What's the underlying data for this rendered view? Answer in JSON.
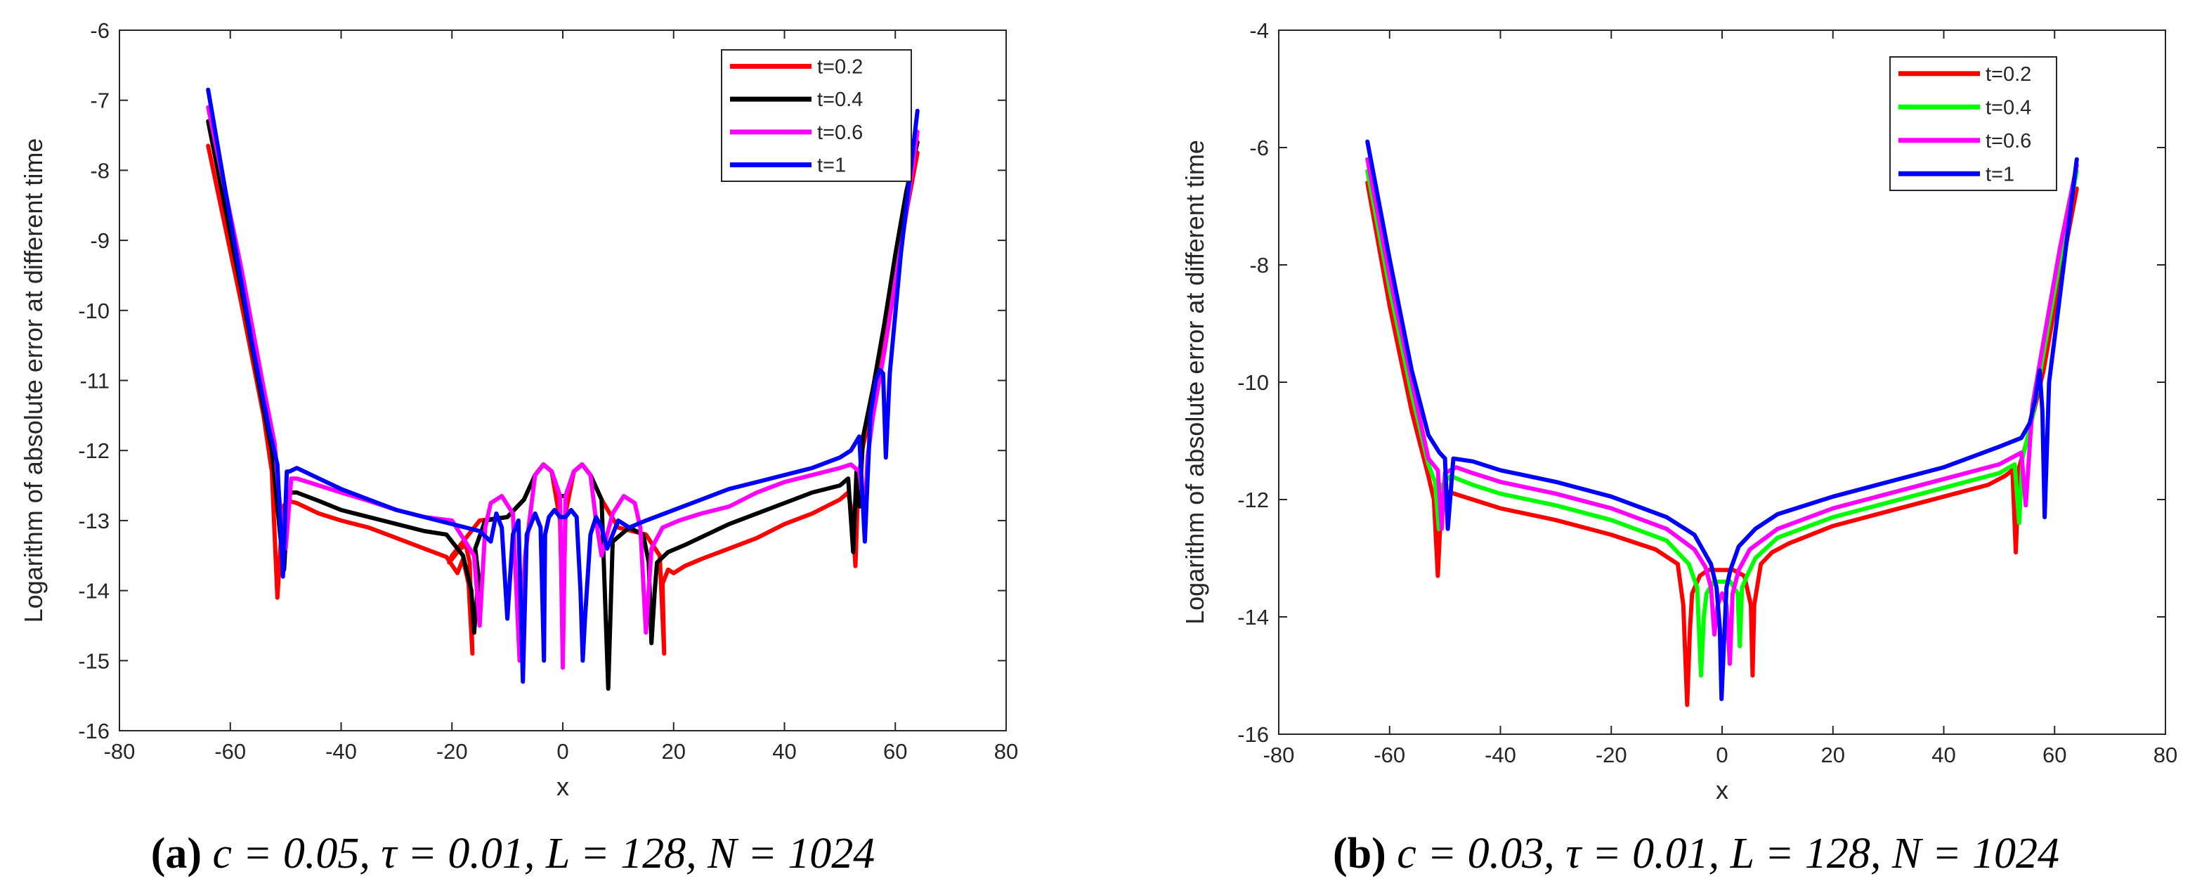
{
  "chart_data": [
    {
      "type": "line",
      "panel": "a",
      "caption": {
        "tag": "(a)",
        "text": "c = 0.05, τ = 0.01, L = 128, N = 1024"
      },
      "xlabel": "x",
      "ylabel": "Logarithm of absolute error at different time",
      "xlim": [
        -80,
        80
      ],
      "ylim": [
        -16,
        -6
      ],
      "xticks": [
        -80,
        -60,
        -40,
        -20,
        0,
        20,
        40,
        60,
        80
      ],
      "yticks": [
        -16,
        -15,
        -14,
        -13,
        -12,
        -11,
        -10,
        -9,
        -8,
        -7,
        -6
      ],
      "legend_position": "top-right",
      "series": [
        {
          "name": "t=0.2",
          "color": "#ff0000",
          "x": [
            -64,
            -58,
            -54,
            -52.5,
            -51.5,
            -50.5,
            -49.5,
            -48,
            -44,
            -40,
            -35,
            -30,
            -25,
            -21,
            -19,
            -18,
            -17,
            -16.3,
            -16.8,
            -17.5,
            -18.5,
            -19.5,
            -20.5,
            -20,
            -15,
            -10,
            -7,
            -5,
            -3.5,
            -2,
            -0.5,
            0,
            0.5,
            2,
            3.5,
            5,
            7,
            10,
            15,
            17.5,
            18.3,
            18,
            19,
            20,
            22,
            25,
            30,
            35,
            40,
            45,
            50,
            51.5,
            52.2,
            52.8,
            53.3,
            54,
            56,
            58,
            60,
            62,
            64
          ],
          "y": [
            -7.65,
            -9.9,
            -11.5,
            -12.3,
            -14.1,
            -12.8,
            -12.72,
            -12.75,
            -12.9,
            -13.0,
            -13.1,
            -13.25,
            -13.4,
            -13.52,
            -13.75,
            -13.55,
            -13.9,
            -14.9,
            -13.6,
            -13.35,
            -13.4,
            -13.5,
            -13.6,
            -13.5,
            -13.0,
            -12.95,
            -12.7,
            -12.35,
            -12.2,
            -12.3,
            -13.0,
            -14.6,
            -12.9,
            -12.3,
            -12.2,
            -12.35,
            -12.7,
            -13.1,
            -13.2,
            -13.5,
            -14.9,
            -13.9,
            -13.7,
            -13.75,
            -13.65,
            -13.55,
            -13.4,
            -13.25,
            -13.05,
            -12.9,
            -12.7,
            -12.6,
            -12.9,
            -13.65,
            -12.5,
            -12.0,
            -11.3,
            -10.5,
            -9.6,
            -8.6,
            -7.75
          ]
        },
        {
          "name": "t=0.4",
          "color": "#000000",
          "x": [
            -64,
            -58,
            -54,
            -52.5,
            -51,
            -50.3,
            -49.5,
            -48,
            -44,
            -40,
            -35,
            -30,
            -25,
            -21,
            -18,
            -16.5,
            -16,
            -15.2,
            -15.8,
            -14,
            -10,
            -7,
            -5,
            -3.5,
            -2,
            -0.5,
            0.5,
            2,
            3.5,
            5,
            7,
            7.8,
            8.2,
            9,
            12,
            14.5,
            15.5,
            16,
            16.6,
            17,
            19,
            22,
            26,
            30,
            35,
            40,
            45,
            50,
            51.5,
            52.4,
            53,
            53.5,
            54.2,
            56,
            58,
            60,
            62,
            64
          ],
          "y": [
            -7.3,
            -9.7,
            -11.4,
            -12.0,
            -13.2,
            -13.7,
            -12.6,
            -12.6,
            -12.72,
            -12.85,
            -12.95,
            -13.05,
            -13.15,
            -13.2,
            -13.5,
            -14.0,
            -14.6,
            -13.8,
            -13.4,
            -13.0,
            -12.95,
            -12.7,
            -12.35,
            -12.2,
            -12.3,
            -12.65,
            -12.65,
            -12.3,
            -12.2,
            -12.35,
            -12.7,
            -14.5,
            -15.4,
            -13.3,
            -13.1,
            -13.2,
            -13.6,
            -14.75,
            -14.0,
            -13.6,
            -13.45,
            -13.35,
            -13.2,
            -13.05,
            -12.9,
            -12.75,
            -12.6,
            -12.5,
            -12.4,
            -13.45,
            -12.3,
            -12.8,
            -11.8,
            -11.1,
            -10.2,
            -9.2,
            -8.3,
            -7.6
          ]
        },
        {
          "name": "t=0.6",
          "color": "#ff00ff",
          "x": [
            -64,
            -58,
            -54,
            -52,
            -50.8,
            -50,
            -49,
            -48,
            -44,
            -40,
            -35,
            -30,
            -25,
            -20,
            -16,
            -15,
            -14,
            -13,
            -11,
            -9,
            -7.8,
            -6.8,
            -5,
            -3.5,
            -2,
            -0.5,
            0,
            0.5,
            2,
            3.5,
            5,
            6,
            7,
            9,
            11,
            13,
            14,
            15,
            16,
            18,
            21,
            25,
            30,
            35,
            40,
            45,
            50,
            52,
            53.5,
            54.5,
            55,
            56,
            58,
            60,
            62,
            64
          ],
          "y": [
            -7.1,
            -9.4,
            -11.1,
            -11.9,
            -13.0,
            -13.4,
            -12.4,
            -12.4,
            -12.5,
            -12.6,
            -12.72,
            -12.85,
            -12.95,
            -13.0,
            -13.5,
            -14.5,
            -13.1,
            -12.75,
            -12.65,
            -12.9,
            -15.0,
            -13.5,
            -12.35,
            -12.2,
            -12.3,
            -12.65,
            -15.1,
            -12.65,
            -12.3,
            -12.2,
            -12.35,
            -13.0,
            -13.5,
            -12.9,
            -12.65,
            -12.75,
            -13.1,
            -14.6,
            -13.4,
            -13.1,
            -13.0,
            -12.9,
            -12.8,
            -12.6,
            -12.45,
            -12.35,
            -12.25,
            -12.2,
            -12.3,
            -12.9,
            -12.1,
            -11.5,
            -10.6,
            -9.6,
            -8.6,
            -7.45
          ]
        },
        {
          "name": "t=1",
          "color": "#0000ff",
          "x": [
            -64,
            -60,
            -56,
            -53,
            -51.5,
            -50.5,
            -49.8,
            -49.3,
            -48,
            -44,
            -40,
            -35,
            -30,
            -25,
            -20,
            -15,
            -13,
            -12,
            -11,
            -10,
            -9,
            -8,
            -7.2,
            -6.5,
            -5,
            -4,
            -3.4,
            -3.2,
            -2.5,
            -1.5,
            -0.5,
            0.5,
            1.5,
            2.5,
            3.2,
            3.6,
            4,
            5,
            6,
            7,
            8,
            9,
            10,
            12,
            15,
            20,
            25,
            30,
            35,
            40,
            45,
            50,
            52,
            53.5,
            54.5,
            55.5,
            56.5,
            57.2,
            57.8,
            58.3,
            59,
            61,
            64
          ],
          "y": [
            -6.85,
            -8.7,
            -10.5,
            -11.7,
            -12.2,
            -13.8,
            -12.3,
            -12.3,
            -12.25,
            -12.4,
            -12.55,
            -12.7,
            -12.85,
            -12.95,
            -13.05,
            -13.15,
            -13.3,
            -12.9,
            -13.1,
            -14.4,
            -13.2,
            -13.0,
            -15.3,
            -13.2,
            -12.9,
            -13.1,
            -15.0,
            -13.2,
            -12.95,
            -12.85,
            -12.95,
            -12.95,
            -12.85,
            -12.95,
            -14.0,
            -15.0,
            -14.4,
            -13.2,
            -12.95,
            -13.1,
            -13.4,
            -13.2,
            -13.0,
            -13.1,
            -13.0,
            -12.85,
            -12.7,
            -12.55,
            -12.45,
            -12.35,
            -12.25,
            -12.1,
            -12.0,
            -11.8,
            -13.3,
            -11.5,
            -11.0,
            -10.85,
            -10.9,
            -12.1,
            -10.9,
            -9.2,
            -7.15
          ]
        }
      ]
    },
    {
      "type": "line",
      "panel": "b",
      "caption": {
        "tag": "(b)",
        "text": "c = 0.03, τ = 0.01, L = 128, N = 1024"
      },
      "xlabel": "x",
      "ylabel": "Logarithm of absolute error at different time",
      "xlim": [
        -80,
        80
      ],
      "ylim": [
        -16,
        -4
      ],
      "xticks": [
        -80,
        -60,
        -40,
        -20,
        0,
        20,
        40,
        60,
        80
      ],
      "yticks": [
        -16,
        -14,
        -12,
        -10,
        -8,
        -6,
        -4
      ],
      "legend_position": "top-right",
      "series": [
        {
          "name": "t=0.2",
          "color": "#ff0000",
          "x": [
            -64,
            -60,
            -56,
            -53,
            -52,
            -51.3,
            -50.8,
            -50,
            -45,
            -40,
            -30,
            -20,
            -12,
            -8,
            -7,
            -6.3,
            -5.8,
            -5.4,
            -4,
            -2.5,
            2,
            4,
            5.2,
            5.5,
            5.8,
            7,
            9,
            12,
            20,
            30,
            40,
            48,
            51,
            52.4,
            53,
            53.6,
            55,
            58,
            61,
            64
          ],
          "y": [
            -6.6,
            -8.7,
            -10.5,
            -11.6,
            -12.0,
            -13.3,
            -12.3,
            -11.85,
            -12.0,
            -12.15,
            -12.35,
            -12.6,
            -12.85,
            -13.1,
            -13.8,
            -15.5,
            -14.2,
            -13.6,
            -13.3,
            -13.2,
            -13.2,
            -13.3,
            -13.8,
            -15.0,
            -13.8,
            -13.1,
            -12.9,
            -12.75,
            -12.45,
            -12.2,
            -11.95,
            -11.75,
            -11.6,
            -11.5,
            -12.9,
            -11.45,
            -11.0,
            -9.8,
            -8.2,
            -6.7
          ]
        },
        {
          "name": "t=0.4",
          "color": "#00ff00",
          "x": [
            -64,
            -60,
            -56,
            -53,
            -51.8,
            -51.1,
            -50.5,
            -49,
            -45,
            -40,
            -30,
            -20,
            -10,
            -6,
            -4.5,
            -3.8,
            -3.3,
            -2.8,
            -1.5,
            1.5,
            2.8,
            3.2,
            3.6,
            4.5,
            6,
            10,
            20,
            30,
            40,
            50,
            52.8,
            53.6,
            54.2,
            56,
            58,
            61,
            64
          ],
          "y": [
            -6.4,
            -8.4,
            -10.2,
            -11.4,
            -11.7,
            -12.5,
            -11.75,
            -11.6,
            -11.75,
            -11.9,
            -12.1,
            -12.35,
            -12.7,
            -13.1,
            -13.5,
            -15.0,
            -14.0,
            -13.6,
            -13.4,
            -13.4,
            -13.6,
            -14.5,
            -13.5,
            -13.3,
            -13.0,
            -12.65,
            -12.3,
            -12.05,
            -11.8,
            -11.55,
            -11.4,
            -12.4,
            -11.3,
            -10.6,
            -9.5,
            -7.9,
            -6.4
          ]
        },
        {
          "name": "t=0.6",
          "color": "#ff00ff",
          "x": [
            -64,
            -60,
            -56,
            -53,
            -51.3,
            -50.6,
            -50,
            -48,
            -45,
            -40,
            -30,
            -20,
            -10,
            -5,
            -3,
            -2,
            -1.4,
            -0.8,
            0,
            0.8,
            1.4,
            1.9,
            3,
            5,
            10,
            20,
            30,
            40,
            50,
            53,
            54,
            54.8,
            56,
            58,
            61,
            64
          ],
          "y": [
            -6.2,
            -8.2,
            -10.0,
            -11.3,
            -11.5,
            -12.5,
            -11.55,
            -11.45,
            -11.55,
            -11.7,
            -11.9,
            -12.15,
            -12.5,
            -12.85,
            -13.15,
            -13.5,
            -14.3,
            -13.8,
            -13.6,
            -13.8,
            -14.8,
            -13.6,
            -13.2,
            -12.85,
            -12.5,
            -12.15,
            -11.9,
            -11.65,
            -11.4,
            -11.25,
            -11.2,
            -12.1,
            -10.4,
            -9.3,
            -7.7,
            -6.3
          ]
        },
        {
          "name": "t=1",
          "color": "#0000ff",
          "x": [
            -64,
            -60,
            -56,
            -53,
            -51,
            -50,
            -49.5,
            -48.5,
            -45,
            -40,
            -30,
            -20,
            -10,
            -5,
            -2,
            -1,
            -0.4,
            -0.1,
            0.3,
            0.8,
            1.5,
            3,
            6,
            10,
            20,
            30,
            40,
            50,
            54,
            55.5,
            56.5,
            57.3,
            57.8,
            58.2,
            59,
            61,
            64
          ],
          "y": [
            -5.9,
            -7.9,
            -9.8,
            -10.9,
            -11.2,
            -11.3,
            -12.5,
            -11.3,
            -11.35,
            -11.5,
            -11.7,
            -11.95,
            -12.3,
            -12.6,
            -13.1,
            -13.5,
            -14.2,
            -15.4,
            -14.5,
            -13.5,
            -13.2,
            -12.8,
            -12.5,
            -12.25,
            -11.95,
            -11.7,
            -11.45,
            -11.1,
            -10.95,
            -10.7,
            -10.3,
            -9.8,
            -10.5,
            -12.3,
            -10.0,
            -8.5,
            -6.2
          ]
        }
      ]
    }
  ]
}
